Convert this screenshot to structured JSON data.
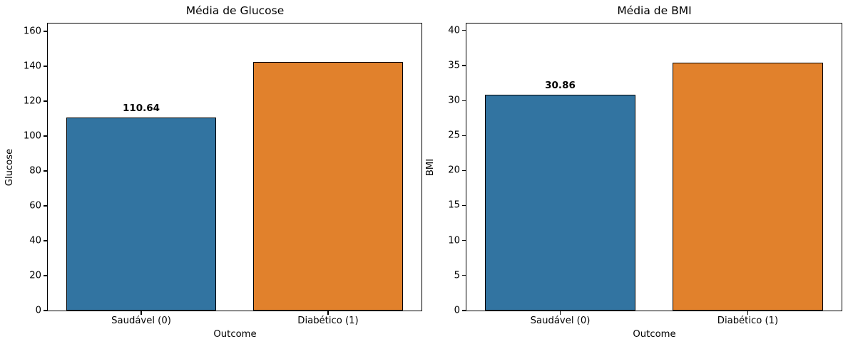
{
  "figure": {
    "background_color": "#ffffff",
    "text_color": "#000000"
  },
  "chart_data": [
    {
      "type": "bar",
      "title": "Média de Glucose",
      "xlabel": "Outcome",
      "ylabel": "Glucose",
      "categories": [
        "Saudável (0)",
        "Diabético (1)"
      ],
      "values": [
        110.64,
        142.32
      ],
      "bar_value_labels": [
        "110.64",
        null
      ],
      "bar_colors": [
        "#3274a1",
        "#e1812c"
      ],
      "bar_edge_color": "#000000",
      "yticks": [
        0,
        20,
        40,
        60,
        80,
        100,
        120,
        140,
        160
      ],
      "ylim": [
        0,
        164.5
      ],
      "bar_width_fraction": 0.8,
      "grid": false,
      "legend": "none"
    },
    {
      "type": "bar",
      "title": "Média de BMI",
      "xlabel": "Outcome",
      "ylabel": "BMI",
      "categories": [
        "Saudável (0)",
        "Diabético (1)"
      ],
      "values": [
        30.86,
        35.41
      ],
      "bar_value_labels": [
        "30.86",
        null
      ],
      "bar_colors": [
        "#3274a1",
        "#e1812c"
      ],
      "bar_edge_color": "#000000",
      "yticks": [
        0,
        5,
        10,
        15,
        20,
        25,
        30,
        35,
        40
      ],
      "ylim": [
        0,
        41
      ],
      "bar_width_fraction": 0.8,
      "grid": false,
      "legend": "none"
    }
  ]
}
